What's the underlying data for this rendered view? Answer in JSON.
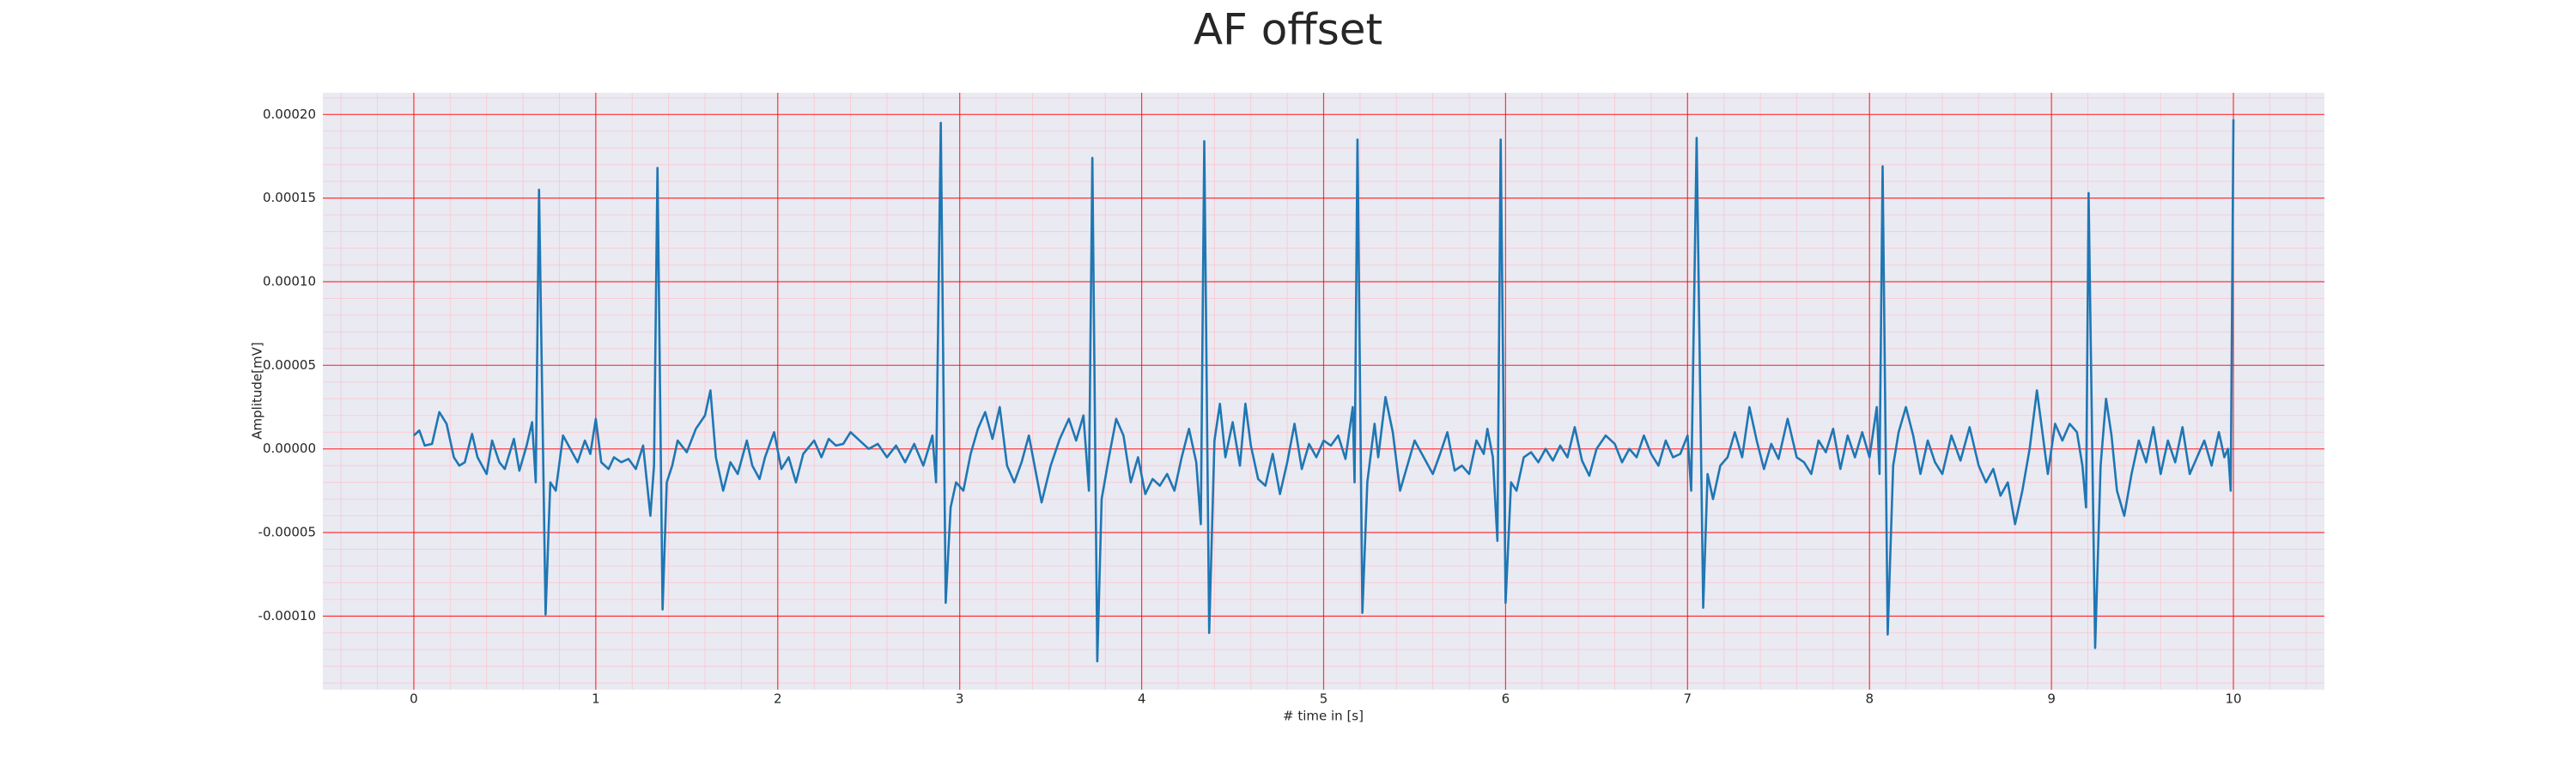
{
  "chart_data": {
    "type": "line",
    "title": "AF offset",
    "xlabel": "# time in [s]",
    "ylabel": "Amplitude[mV]",
    "color": "#1f77b4",
    "xlim": [
      -0.5,
      10.5
    ],
    "ylim": [
      -0.000144,
      0.000213
    ],
    "xticks": [
      0,
      1,
      2,
      3,
      4,
      5,
      6,
      7,
      8,
      9,
      10
    ],
    "yticks": [
      {
        "value": -0.0001,
        "label": "-0.00010"
      },
      {
        "value": -5e-05,
        "label": "-0.00005"
      },
      {
        "value": 0,
        "label": "0.00000"
      },
      {
        "value": 5e-05,
        "label": "0.00005"
      },
      {
        "value": 0.0001,
        "label": "0.00010"
      },
      {
        "value": 0.00015,
        "label": "0.00015"
      },
      {
        "value": 0.0002,
        "label": "0.00020"
      }
    ],
    "grid": true,
    "grid_color": "#ff0000",
    "minor_grid": true,
    "minor_grid_color": "#ffc0cb",
    "x": [
      0,
      0.03,
      0.06,
      0.1,
      0.14,
      0.18,
      0.22,
      0.25,
      0.28,
      0.32,
      0.35,
      0.4,
      0.43,
      0.47,
      0.5,
      0.55,
      0.58,
      0.62,
      0.65,
      0.67,
      0.688,
      0.724,
      0.75,
      0.78,
      0.82,
      0.86,
      0.9,
      0.94,
      0.97,
      1.0,
      1.03,
      1.07,
      1.1,
      1.14,
      1.18,
      1.22,
      1.26,
      1.3,
      1.32,
      1.339,
      1.367,
      1.39,
      1.42,
      1.45,
      1.5,
      1.55,
      1.6,
      1.63,
      1.66,
      1.7,
      1.74,
      1.78,
      1.83,
      1.86,
      1.9,
      1.93,
      1.98,
      2.02,
      2.06,
      2.1,
      2.14,
      2.2,
      2.24,
      2.28,
      2.32,
      2.36,
      2.4,
      2.45,
      2.5,
      2.55,
      2.6,
      2.65,
      2.7,
      2.75,
      2.8,
      2.85,
      2.87,
      2.896,
      2.923,
      2.95,
      2.98,
      3.02,
      3.06,
      3.1,
      3.14,
      3.18,
      3.22,
      3.26,
      3.3,
      3.34,
      3.38,
      3.42,
      3.45,
      3.5,
      3.55,
      3.6,
      3.64,
      3.68,
      3.71,
      3.729,
      3.756,
      3.78,
      3.82,
      3.86,
      3.9,
      3.94,
      3.98,
      4.02,
      4.06,
      4.1,
      4.14,
      4.18,
      4.22,
      4.26,
      4.3,
      4.325,
      4.344,
      4.371,
      4.4,
      4.43,
      4.46,
      4.5,
      4.54,
      4.57,
      4.6,
      4.64,
      4.68,
      4.72,
      4.76,
      4.8,
      4.84,
      4.88,
      4.92,
      4.96,
      5.0,
      5.04,
      5.08,
      5.12,
      5.16,
      5.17,
      5.186,
      5.213,
      5.24,
      5.28,
      5.3,
      5.34,
      5.38,
      5.42,
      5.46,
      5.5,
      5.55,
      5.6,
      5.64,
      5.68,
      5.72,
      5.76,
      5.8,
      5.84,
      5.88,
      5.9,
      5.93,
      5.955,
      5.973,
      6.0,
      6.03,
      6.06,
      6.1,
      6.14,
      6.18,
      6.22,
      6.26,
      6.3,
      6.34,
      6.38,
      6.42,
      6.46,
      6.5,
      6.55,
      6.6,
      6.64,
      6.68,
      6.72,
      6.76,
      6.8,
      6.84,
      6.88,
      6.92,
      6.96,
      7.0,
      7.02,
      7.05,
      7.086,
      7.11,
      7.14,
      7.18,
      7.22,
      7.26,
      7.3,
      7.34,
      7.38,
      7.42,
      7.46,
      7.5,
      7.55,
      7.6,
      7.64,
      7.68,
      7.72,
      7.76,
      7.8,
      7.84,
      7.88,
      7.92,
      7.96,
      8.0,
      8.04,
      8.055,
      8.072,
      8.1,
      8.13,
      8.16,
      8.2,
      8.24,
      8.28,
      8.32,
      8.36,
      8.4,
      8.45,
      8.5,
      8.55,
      8.6,
      8.64,
      8.68,
      8.72,
      8.76,
      8.8,
      8.84,
      8.88,
      8.92,
      8.95,
      8.98,
      9.02,
      9.06,
      9.1,
      9.14,
      9.17,
      9.19,
      9.204,
      9.24,
      9.27,
      9.3,
      9.33,
      9.36,
      9.4,
      9.44,
      9.48,
      9.52,
      9.56,
      9.6,
      9.64,
      9.68,
      9.72,
      9.76,
      9.8,
      9.84,
      9.88,
      9.92,
      9.95,
      9.97,
      9.985,
      10.0
    ],
    "values": [
      8e-06,
      1.1e-05,
      2e-06,
      3e-06,
      2.2e-05,
      1.5e-05,
      -5e-06,
      -1e-05,
      -8e-06,
      9e-06,
      -5e-06,
      -1.5e-05,
      5e-06,
      -8e-06,
      -1.2e-05,
      6e-06,
      -1.3e-05,
      2e-06,
      1.6e-05,
      -2e-05,
      0.000155,
      -9.9e-05,
      -2e-05,
      -2.5e-05,
      8e-06,
      0,
      -8e-06,
      5e-06,
      -3e-06,
      1.8e-05,
      -8e-06,
      -1.2e-05,
      -5e-06,
      -8e-06,
      -6e-06,
      -1.2e-05,
      2e-06,
      -4e-05,
      -1e-05,
      0.000168,
      -9.6e-05,
      -2e-05,
      -1e-05,
      5e-06,
      -2e-06,
      1.2e-05,
      2e-05,
      3.5e-05,
      -5e-06,
      -2.5e-05,
      -8e-06,
      -1.5e-05,
      5e-06,
      -1e-05,
      -1.8e-05,
      -5e-06,
      1e-05,
      -1.2e-05,
      -5e-06,
      -2e-05,
      -3e-06,
      5e-06,
      -5e-06,
      6e-06,
      2e-06,
      3e-06,
      1e-05,
      5e-06,
      0,
      3e-06,
      -5e-06,
      2e-06,
      -8e-06,
      3e-06,
      -1e-05,
      8e-06,
      -2e-05,
      0.000195,
      -9.2e-05,
      -3.5e-05,
      -2e-05,
      -2.5e-05,
      -3e-06,
      1.2e-05,
      2.2e-05,
      6e-06,
      2.5e-05,
      -1e-05,
      -2e-05,
      -8e-06,
      8e-06,
      -1.5e-05,
      -3.2e-05,
      -1e-05,
      6e-06,
      1.8e-05,
      5e-06,
      2e-05,
      -2.5e-05,
      0.000174,
      -0.000127,
      -3e-05,
      -5e-06,
      1.8e-05,
      8e-06,
      -2e-05,
      -5e-06,
      -2.7e-05,
      -1.8e-05,
      -2.2e-05,
      -1.5e-05,
      -2.5e-05,
      -5e-06,
      1.2e-05,
      -8e-06,
      -4.5e-05,
      0.000184,
      -0.00011,
      5e-06,
      2.7e-05,
      -5e-06,
      1.6e-05,
      -1e-05,
      2.7e-05,
      2e-06,
      -1.8e-05,
      -2.2e-05,
      -3e-06,
      -2.7e-05,
      -8e-06,
      1.5e-05,
      -1.2e-05,
      3e-06,
      -5e-06,
      5e-06,
      2e-06,
      8e-06,
      -6e-06,
      2.5e-05,
      -2e-05,
      0.000185,
      -9.8e-05,
      -2e-05,
      1.5e-05,
      -5e-06,
      3.1e-05,
      1e-05,
      -2.5e-05,
      -1e-05,
      5e-06,
      -5e-06,
      -1.5e-05,
      -3e-06,
      1e-05,
      -1.3e-05,
      -1e-05,
      -1.5e-05,
      5e-06,
      -3e-06,
      1.2e-05,
      -5e-06,
      -5.5e-05,
      0.000185,
      -9.2e-05,
      -2e-05,
      -2.5e-05,
      -5e-06,
      -2e-06,
      -8e-06,
      0,
      -7e-06,
      2e-06,
      -5e-06,
      1.3e-05,
      -7e-06,
      -1.6e-05,
      0,
      8e-06,
      3e-06,
      -8e-06,
      0,
      -5e-06,
      8e-06,
      -3e-06,
      -1e-05,
      5e-06,
      -5e-06,
      -3e-06,
      8e-06,
      -2.5e-05,
      0.000186,
      -9.5e-05,
      -1.5e-05,
      -3e-05,
      -1e-05,
      -5e-06,
      1e-05,
      -5e-06,
      2.5e-05,
      5e-06,
      -1.2e-05,
      3e-06,
      -6e-06,
      1.8e-05,
      -5e-06,
      -8e-06,
      -1.5e-05,
      5e-06,
      -2e-06,
      1.2e-05,
      -1.2e-05,
      8e-06,
      -5e-06,
      1e-05,
      -5e-06,
      2.5e-05,
      -1.5e-05,
      0.000169,
      -0.000111,
      -1e-05,
      1e-05,
      2.5e-05,
      8e-06,
      -1.5e-05,
      5e-06,
      -8e-06,
      -1.5e-05,
      8e-06,
      -7e-06,
      1.3e-05,
      -1e-05,
      -2e-05,
      -1.2e-05,
      -2.8e-05,
      -2e-05,
      -4.5e-05,
      -2.5e-05,
      0,
      3.5e-05,
      1e-05,
      -1.5e-05,
      1.5e-05,
      5e-06,
      1.5e-05,
      1e-05,
      -1e-05,
      -3.5e-05,
      0.000153,
      -0.000119,
      -1e-05,
      3e-05,
      8e-06,
      -2.5e-05,
      -4e-05,
      -1.5e-05,
      5e-06,
      -8e-06,
      1.3e-05,
      -1.5e-05,
      5e-06,
      -8e-06,
      1.3e-05,
      -1.5e-05,
      -5e-06,
      5e-06,
      -1e-05,
      1e-05,
      -5e-06,
      0,
      -2.5e-05,
      0.000197
    ]
  }
}
